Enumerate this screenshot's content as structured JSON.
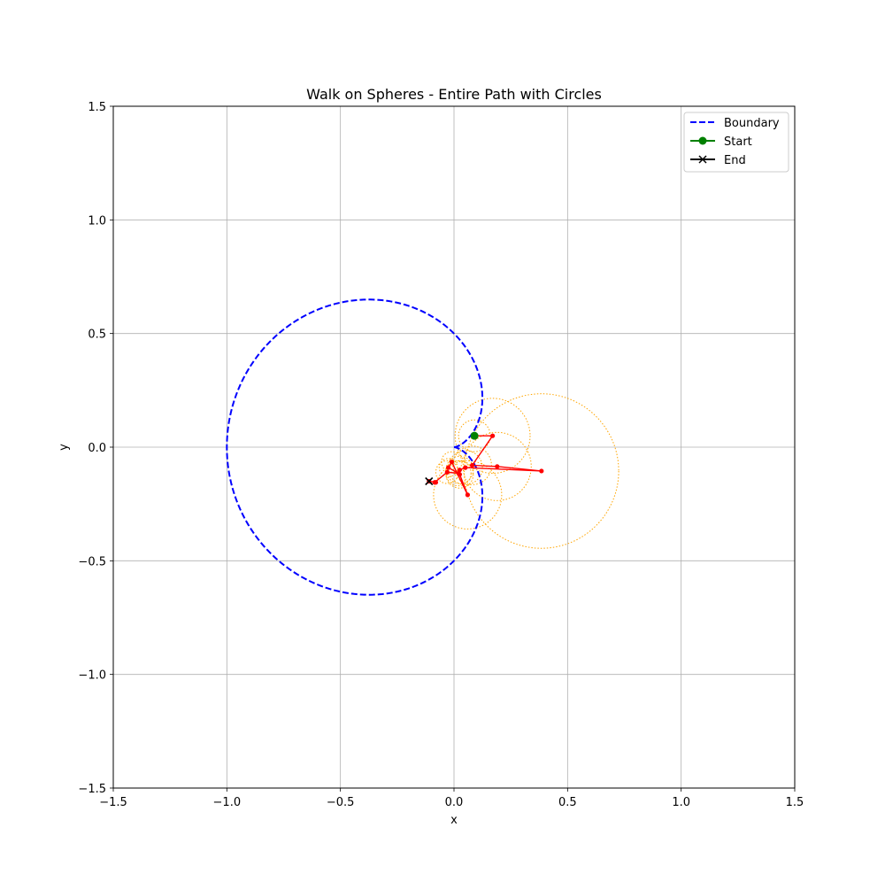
{
  "chart_data": {
    "type": "line",
    "title": "Walk on Spheres - Entire Path with Circles",
    "xlabel": "x",
    "ylabel": "y",
    "xlim": [
      -1.5,
      1.5
    ],
    "ylim": [
      -1.5,
      1.5
    ],
    "xticks": [
      -1.5,
      -1.0,
      -0.5,
      0.0,
      0.5,
      1.0,
      1.5
    ],
    "yticks": [
      -1.5,
      -1.0,
      -0.5,
      0.0,
      0.5,
      1.0,
      1.5
    ],
    "xtick_labels": [
      "−1.5",
      "−1.0",
      "−0.5",
      "0.0",
      "0.5",
      "1.0",
      "1.5"
    ],
    "ytick_labels": [
      "−1.5",
      "−1.0",
      "−0.5",
      "0.0",
      "0.5",
      "1.0",
      "1.5"
    ],
    "grid": true,
    "legend_position": "top-right",
    "colors": {
      "boundary": "#0000ff",
      "start": "#008000",
      "end": "#000000",
      "path": "#ff0000",
      "circles": "#ffa500",
      "grid": "#b0b0b0"
    },
    "series": [
      {
        "name": "Boundary",
        "style": "dashed",
        "marker": "none",
        "curve": "cardioid",
        "note_values": "r = 0.5(1 - cos t)"
      },
      {
        "name": "Start",
        "style": "solid",
        "marker": "circle",
        "points": [
          [
            0.09,
            0.05
          ]
        ]
      },
      {
        "name": "End",
        "style": "solid",
        "marker": "x",
        "points": [
          [
            -0.11,
            -0.15
          ]
        ]
      }
    ],
    "path_points": [
      [
        0.09,
        0.05
      ],
      [
        0.17,
        0.05
      ],
      [
        0.08,
        -0.08
      ],
      [
        0.19,
        -0.085
      ],
      [
        0.385,
        -0.105
      ],
      [
        0.05,
        -0.09
      ],
      [
        0.025,
        -0.1
      ],
      [
        0.025,
        -0.12
      ],
      [
        0.06,
        -0.21
      ],
      [
        -0.01,
        -0.065
      ],
      [
        -0.025,
        -0.09
      ],
      [
        0.02,
        -0.115
      ],
      [
        -0.03,
        -0.11
      ],
      [
        -0.085,
        -0.155
      ],
      [
        -0.08,
        -0.155
      ],
      [
        -0.11,
        -0.15
      ]
    ],
    "circles": [
      {
        "cx": 0.09,
        "cy": 0.05,
        "r": 0.07
      },
      {
        "cx": 0.17,
        "cy": 0.05,
        "r": 0.165
      },
      {
        "cx": 0.19,
        "cy": -0.085,
        "r": 0.15
      },
      {
        "cx": 0.385,
        "cy": -0.105,
        "r": 0.34
      },
      {
        "cx": 0.08,
        "cy": -0.08,
        "r": 0.085
      },
      {
        "cx": 0.05,
        "cy": -0.09,
        "r": 0.075
      },
      {
        "cx": 0.025,
        "cy": -0.1,
        "r": 0.06
      },
      {
        "cx": 0.025,
        "cy": -0.12,
        "r": 0.06
      },
      {
        "cx": 0.06,
        "cy": -0.21,
        "r": 0.15
      },
      {
        "cx": -0.01,
        "cy": -0.065,
        "r": 0.045
      },
      {
        "cx": -0.025,
        "cy": -0.09,
        "r": 0.04
      },
      {
        "cx": 0.02,
        "cy": -0.115,
        "r": 0.055
      },
      {
        "cx": -0.03,
        "cy": -0.11,
        "r": 0.05
      }
    ]
  }
}
